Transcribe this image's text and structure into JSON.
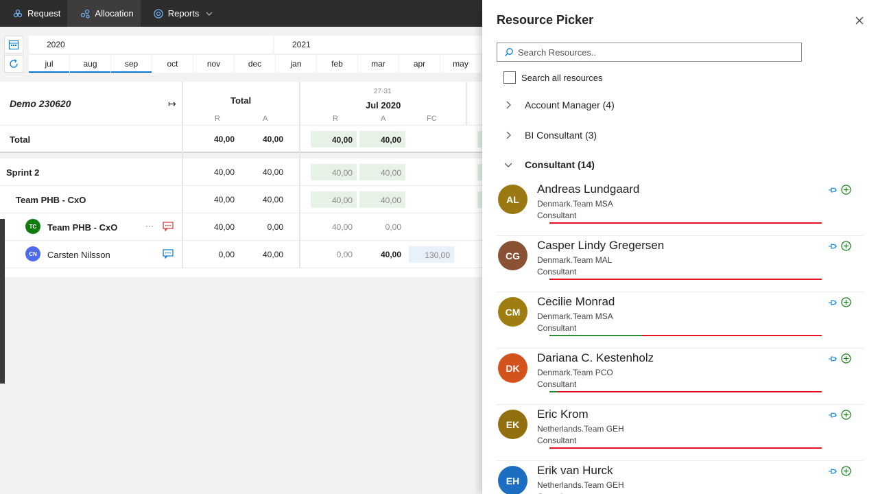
{
  "nav": {
    "items": [
      {
        "label": "Request",
        "icon": "request-icon"
      },
      {
        "label": "Allocation",
        "icon": "allocation-icon"
      },
      {
        "label": "Reports",
        "icon": "reports-icon"
      }
    ]
  },
  "timeline": {
    "years": [
      "2020",
      "2021"
    ],
    "months": [
      "jul",
      "aug",
      "sep",
      "oct",
      "nov",
      "dec",
      "jan",
      "feb",
      "mar",
      "apr",
      "may"
    ],
    "selected_months": [
      "jul",
      "aug",
      "sep"
    ]
  },
  "grid": {
    "project": "Demo 230620",
    "total_header": "Total",
    "period_range": "27-31",
    "period_label": "Jul 2020",
    "col_r": "R",
    "col_a": "A",
    "col_fc": "FC",
    "rows": [
      {
        "label": "Total",
        "total_r": "40,00",
        "total_a": "40,00",
        "p_r": "40,00",
        "p_a": "40,00",
        "p_fc": ""
      },
      {
        "label": "Sprint 2",
        "total_r": "40,00",
        "total_a": "40,00",
        "p_r": "40,00",
        "p_a": "40,00",
        "p_fc": ""
      },
      {
        "label": "Team PHB - CxO",
        "total_r": "40,00",
        "total_a": "40,00",
        "p_r": "40,00",
        "p_a": "40,00",
        "p_fc": ""
      },
      {
        "label": "Team PHB - CxO",
        "initials": "TC",
        "total_r": "40,00",
        "total_a": "0,00",
        "p_r": "40,00",
        "p_a": "0,00",
        "p_fc": ""
      },
      {
        "label": "Carsten Nilsson",
        "initials": "CN",
        "total_r": "0,00",
        "total_a": "40,00",
        "p_r": "0,00",
        "p_a": "40,00",
        "p_fc": "130,00"
      }
    ],
    "more_label": "···"
  },
  "picker": {
    "title": "Resource Picker",
    "search_placeholder": "Search Resources..",
    "search_all_label": "Search all resources",
    "groups": [
      {
        "label": "Account Manager (4)",
        "expanded": false
      },
      {
        "label": "BI Consultant (3)",
        "expanded": false
      },
      {
        "label": "Consultant (14)",
        "expanded": true
      }
    ],
    "people": [
      {
        "initials": "AL",
        "name": "Andreas Lundgaard",
        "team": "Denmark.Team MSA",
        "role": "Consultant",
        "color": "#9a7a10",
        "available_fraction": 0
      },
      {
        "initials": "CG",
        "name": "Casper Lindy Gregersen",
        "team": "Denmark.Team MAL",
        "role": "Consultant",
        "color": "#8b5135",
        "available_fraction": 0
      },
      {
        "initials": "CM",
        "name": "Cecilie Monrad",
        "team": "Denmark.Team MSA",
        "role": "Consultant",
        "color": "#a07d10",
        "available_fraction": 0.34
      },
      {
        "initials": "DK",
        "name": "Dariana C. Kestenholz",
        "team": "Denmark.Team PCO",
        "role": "Consultant",
        "color": "#d4531c",
        "available_fraction": 0.03
      },
      {
        "initials": "EK",
        "name": "Eric Krom",
        "team": "Netherlands.Team GEH",
        "role": "Consultant",
        "color": "#93700f",
        "available_fraction": 0
      },
      {
        "initials": "EH",
        "name": "Erik van Hurck",
        "team": "Netherlands.Team GEH",
        "role": "Consultant",
        "color": "#1b6ec2",
        "available_fraction": 0
      }
    ]
  },
  "colors": {
    "nav_bg": "#2f2d2c",
    "accent": "#0078d4",
    "allocated_bg": "#e6f2e6",
    "forecast_bg": "#e8f0fa",
    "over_allocated": "#e81123",
    "available": "#2e8b3a"
  }
}
